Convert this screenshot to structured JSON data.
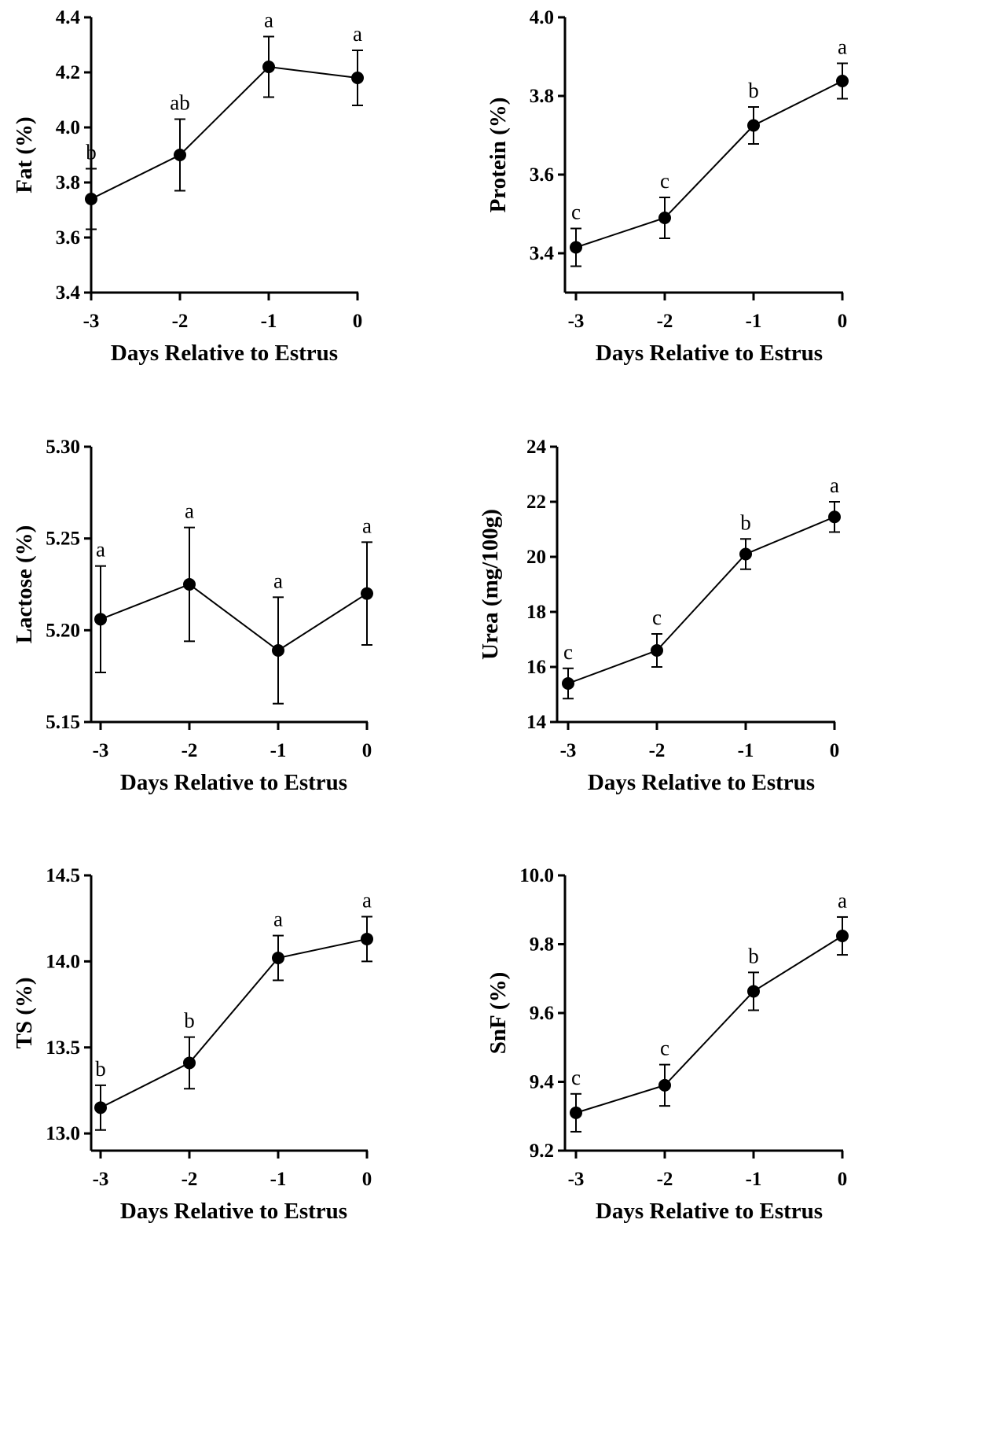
{
  "chart_data": [
    {
      "type": "line",
      "title": "",
      "xlabel": "Days Relative to Estrus",
      "ylabel": "Fat (%)",
      "x": [
        -3,
        -2,
        -1,
        0
      ],
      "x_tick_labels": [
        "-3",
        "-2",
        "-1",
        "0"
      ],
      "values": [
        3.74,
        3.9,
        4.22,
        4.18
      ],
      "error": [
        0.11,
        0.13,
        0.11,
        0.1
      ],
      "letters": [
        "b",
        "ab",
        "a",
        "a"
      ],
      "ylim": [
        3.4,
        4.4
      ],
      "y_ticks": [
        3.4,
        3.6,
        3.8,
        4.0,
        4.2,
        4.4
      ],
      "y_tick_labels": [
        "3.4",
        "3.6",
        "3.8",
        "4.0",
        "4.2",
        "4.4"
      ],
      "grid": false
    },
    {
      "type": "line",
      "title": "",
      "xlabel": "Days Relative to Estrus",
      "ylabel": "Protein (%)",
      "x": [
        -3,
        -2,
        -1,
        0
      ],
      "x_tick_labels": [
        "-3",
        "-2",
        "-1",
        "0"
      ],
      "values": [
        3.415,
        3.49,
        3.725,
        3.838
      ],
      "error": [
        0.048,
        0.052,
        0.047,
        0.045
      ],
      "letters": [
        "c",
        "c",
        "b",
        "a"
      ],
      "ylim": [
        3.3,
        4.0
      ],
      "y_ticks": [
        3.4,
        3.6,
        3.8,
        4.0
      ],
      "y_tick_labels": [
        "3.4",
        "3.6",
        "3.8",
        "4.0"
      ],
      "grid": false
    },
    {
      "type": "line",
      "title": "",
      "xlabel": "Days Relative to Estrus",
      "ylabel": "Lactose (%)",
      "x": [
        -3,
        -2,
        -1,
        0
      ],
      "x_tick_labels": [
        "-3",
        "-2",
        "-1",
        "0"
      ],
      "values": [
        5.206,
        5.225,
        5.189,
        5.22
      ],
      "error": [
        0.029,
        0.031,
        0.029,
        0.028
      ],
      "letters": [
        "a",
        "a",
        "a",
        "a"
      ],
      "ylim": [
        5.15,
        5.3
      ],
      "y_ticks": [
        5.15,
        5.2,
        5.25,
        5.3
      ],
      "y_tick_labels": [
        "5.15",
        "5.20",
        "5.25",
        "5.30"
      ],
      "grid": false
    },
    {
      "type": "line",
      "title": "",
      "xlabel": "Days Relative to Estrus",
      "ylabel": "Urea (mg/100g)",
      "x": [
        -3,
        -2,
        -1,
        0
      ],
      "x_tick_labels": [
        "-3",
        "-2",
        "-1",
        "0"
      ],
      "values": [
        15.4,
        16.6,
        20.1,
        21.45
      ],
      "error": [
        0.55,
        0.6,
        0.55,
        0.55
      ],
      "letters": [
        "c",
        "c",
        "b",
        "a"
      ],
      "ylim": [
        14,
        24
      ],
      "y_ticks": [
        14,
        16,
        18,
        20,
        22,
        24
      ],
      "y_tick_labels": [
        "14",
        "16",
        "18",
        "20",
        "22",
        "24"
      ],
      "grid": false
    },
    {
      "type": "line",
      "title": "",
      "xlabel": "Days Relative to Estrus",
      "ylabel": "TS (%)",
      "x": [
        -3,
        -2,
        -1,
        0
      ],
      "x_tick_labels": [
        "-3",
        "-2",
        "-1",
        "0"
      ],
      "values": [
        13.15,
        13.41,
        14.02,
        14.13
      ],
      "error": [
        0.13,
        0.15,
        0.13,
        0.13
      ],
      "letters": [
        "b",
        "b",
        "a",
        "a"
      ],
      "ylim": [
        12.9,
        14.5
      ],
      "y_ticks": [
        13.0,
        13.5,
        14.0,
        14.5
      ],
      "y_tick_labels": [
        "13.0",
        "13.5",
        "14.0",
        "14.5"
      ],
      "grid": false
    },
    {
      "type": "line",
      "title": "",
      "xlabel": "Days Relative to Estrus",
      "ylabel": "SnF (%)",
      "x": [
        -3,
        -2,
        -1,
        0
      ],
      "x_tick_labels": [
        "-3",
        "-2",
        "-1",
        "0"
      ],
      "values": [
        9.31,
        9.39,
        9.663,
        9.824
      ],
      "error": [
        0.055,
        0.06,
        0.055,
        0.055
      ],
      "letters": [
        "c",
        "c",
        "b",
        "a"
      ],
      "ylim": [
        9.2,
        10.0
      ],
      "y_ticks": [
        9.2,
        9.4,
        9.6,
        9.8,
        10.0
      ],
      "y_tick_labels": [
        "9.2",
        "9.4",
        "9.6",
        "9.8",
        "10.0"
      ],
      "grid": false
    }
  ]
}
